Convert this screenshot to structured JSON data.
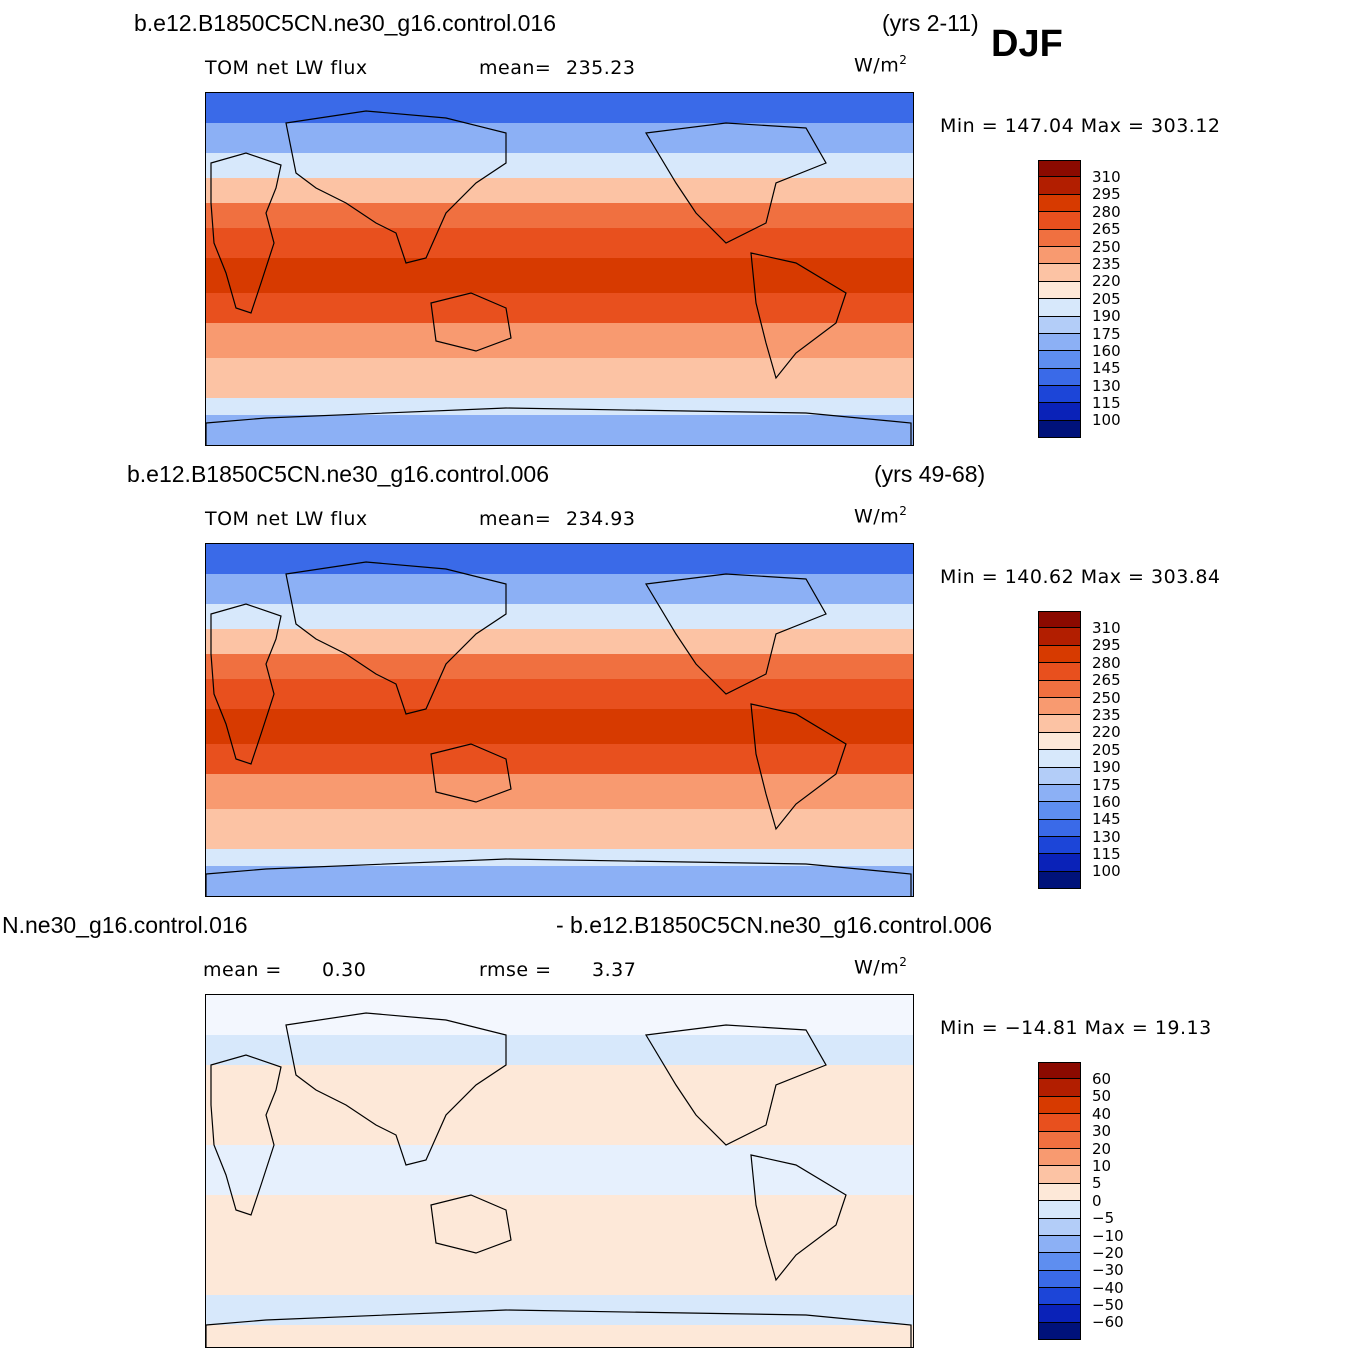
{
  "header": {
    "case1_title": "b.e12.B1850C5CN.ne30_g16.control.016",
    "case1_years": "(yrs 2-11)",
    "season": "DJF",
    "case2_title": "b.e12.B1850C5CN.ne30_g16.control.006",
    "case2_years": "(yrs 49-68)",
    "diff_title_left": "N.ne30_g16.control.016",
    "diff_title_right": "- b.e12.B1850C5CN.ne30_g16.control.006"
  },
  "panels": [
    {
      "variable": "TOM net LW flux",
      "stat_label": "mean=",
      "stat_value": "235.23",
      "units": "W/m",
      "units_exp": "2",
      "minmax": "Min = 147.04 Max = 303.12"
    },
    {
      "variable": "TOM net LW flux",
      "stat_label": "mean=",
      "stat_value": "234.93",
      "units": "W/m",
      "units_exp": "2",
      "minmax": "Min = 140.62 Max = 303.84"
    },
    {
      "mean_label": "mean =",
      "mean_value": "0.30",
      "rmse_label": "rmse =",
      "rmse_value": "3.37",
      "units": "W/m",
      "units_exp": "2",
      "minmax": "Min = −14.81 Max =  19.13"
    }
  ],
  "colorbars": {
    "abs_levels": [
      "310",
      "295",
      "280",
      "265",
      "250",
      "235",
      "220",
      "205",
      "190",
      "175",
      "160",
      "145",
      "130",
      "115",
      "100"
    ],
    "diff_levels": [
      "60",
      "50",
      "40",
      "30",
      "20",
      "10",
      "5",
      "0",
      "−5",
      "−10",
      "−20",
      "−30",
      "−40",
      "−50",
      "−60"
    ],
    "colors": [
      "#8b0a00",
      "#b21e00",
      "#d73a00",
      "#e8501e",
      "#f07040",
      "#f89a70",
      "#fcc3a4",
      "#fde8d8",
      "#d7e8fb",
      "#b3cdf8",
      "#8cb0f5",
      "#5e8ef0",
      "#3a6ae8",
      "#1c45d8",
      "#0a22b8",
      "#00127a"
    ]
  }
}
